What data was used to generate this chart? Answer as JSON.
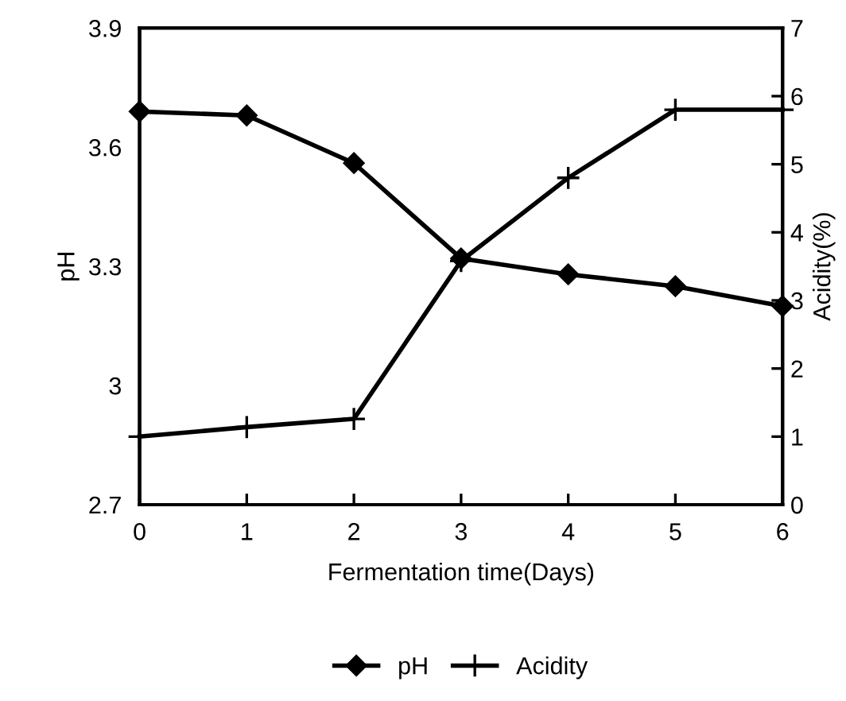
{
  "chart_data": {
    "type": "line",
    "xlabel": "Fermentation time(Days)",
    "ylabel": "pH",
    "y2label": "Acidity(%)",
    "x": [
      0,
      1,
      2,
      3,
      4,
      5,
      6
    ],
    "series": [
      {
        "name": "pH",
        "color": "#000000",
        "marker": "diamond",
        "values": [
          3.69,
          3.68,
          3.56,
          3.32,
          3.28,
          3.25,
          3.2
        ]
      },
      {
        "name": "Acidity",
        "color": "#000000",
        "marker": "cross",
        "axis": "y2",
        "values": [
          1.0,
          1.14,
          1.26,
          3.58,
          4.8,
          5.8,
          5.8
        ]
      }
    ],
    "xlim": [
      0,
      6
    ],
    "xticks": [
      0,
      1,
      2,
      3,
      4,
      5,
      6
    ],
    "ylim": [
      2.7,
      3.9
    ],
    "yticks": [
      2.7,
      {
        "value": 3.0,
        "label": "3"
      },
      3.3,
      3.6,
      3.9
    ],
    "y2lim": [
      0,
      7
    ],
    "y2ticks": [
      0,
      1,
      2,
      3,
      4,
      5,
      6,
      7
    ],
    "legend": "bottom",
    "grid": false
  }
}
